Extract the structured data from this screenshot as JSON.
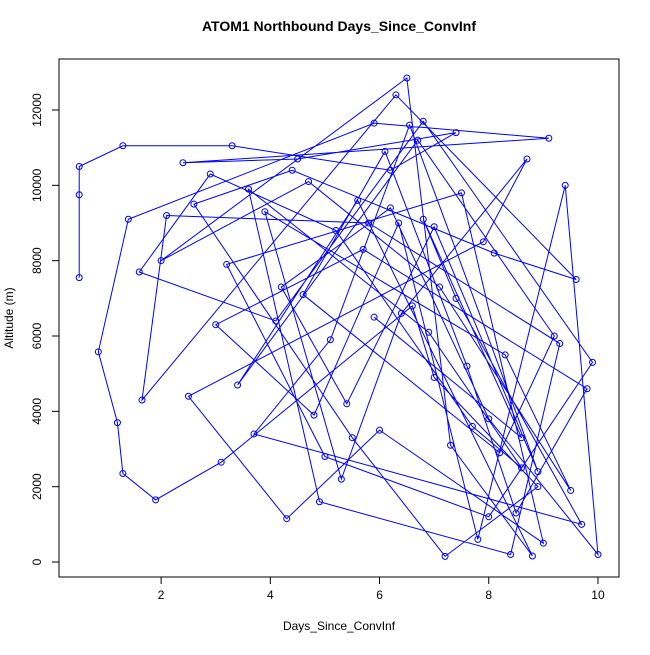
{
  "chart_data": {
    "type": "line",
    "title": "ATOM1 Northbound Days_Since_ConvInf",
    "x_label": "Days_Since_ConvInf",
    "y_label": "Altitude (m)",
    "x": [
      0.5,
      0.5,
      0.5,
      1.3,
      3.3,
      6.2,
      7.4,
      4.5,
      2.4,
      9.1,
      5.9,
      1.4,
      0.85,
      1.2,
      1.3,
      1.9,
      3.1,
      6.6,
      7.0,
      8.9,
      7.2,
      5.5,
      2.6,
      4.4,
      8.1,
      9.6,
      6.3,
      1.65,
      2.1,
      5.8,
      9.3,
      8.4,
      4.9,
      3.6,
      6.9,
      8.6,
      7.7,
      5.2,
      2.9,
      1.6,
      4.1,
      6.8,
      9.9,
      8.0,
      5.0,
      3.2,
      7.5,
      9.0,
      6.0,
      4.3,
      2.5,
      7.9,
      8.7,
      6.4,
      5.3,
      3.9,
      8.3,
      9.5,
      7.1,
      4.7,
      2.0,
      6.5,
      7.3,
      8.8,
      5.6,
      3.4,
      6.7,
      9.2,
      8.2,
      4.6,
      6.1,
      7.6,
      8.5,
      9.8,
      5.7,
      3.0,
      4.8,
      6.35,
      7.8,
      9.4,
      10.0,
      8.0,
      6.2,
      4.2,
      5.4,
      7.0,
      8.9,
      6.55,
      5.1,
      3.7,
      9.7,
      7.4,
      6.8,
      8.6,
      5.9
    ],
    "series": [
      {
        "color": "#0000ff",
        "values": [
          7550,
          9750,
          10500,
          11050,
          11050,
          10400,
          11400,
          10700,
          10600,
          11250,
          11650,
          9100,
          5580,
          3700,
          2350,
          1650,
          2650,
          6800,
          4900,
          2000,
          150,
          3300,
          9500,
          10400,
          8200,
          7500,
          12400,
          4300,
          9200,
          9000,
          5800,
          200,
          1600,
          9900,
          6100,
          2500,
          3600,
          8800,
          10300,
          7700,
          6400,
          11700,
          5300,
          1200,
          2800,
          7900,
          9800,
          500,
          3500,
          1150,
          4400,
          8500,
          10700,
          6600,
          2200,
          9300,
          5500,
          1900,
          7300,
          10100,
          8000,
          12850,
          3100,
          160,
          9600,
          4700,
          11200,
          6000,
          2900,
          7100,
          10900,
          5200,
          1300,
          4600,
          8300,
          6300,
          3900,
          9000,
          600,
          10000,
          200,
          3800,
          9400,
          7300,
          4200,
          8900,
          2400,
          11600,
          5900,
          3400,
          1000,
          7000,
          9100,
          3300,
          6500
        ]
      }
    ],
    "xlim": [
      0.13,
      10.385
    ],
    "ylim": [
      -398,
      13354
    ],
    "xticks": [
      2,
      4,
      6,
      8,
      10
    ],
    "yticks": [
      0,
      2000,
      4000,
      6000,
      8000,
      10000,
      12000
    ]
  }
}
